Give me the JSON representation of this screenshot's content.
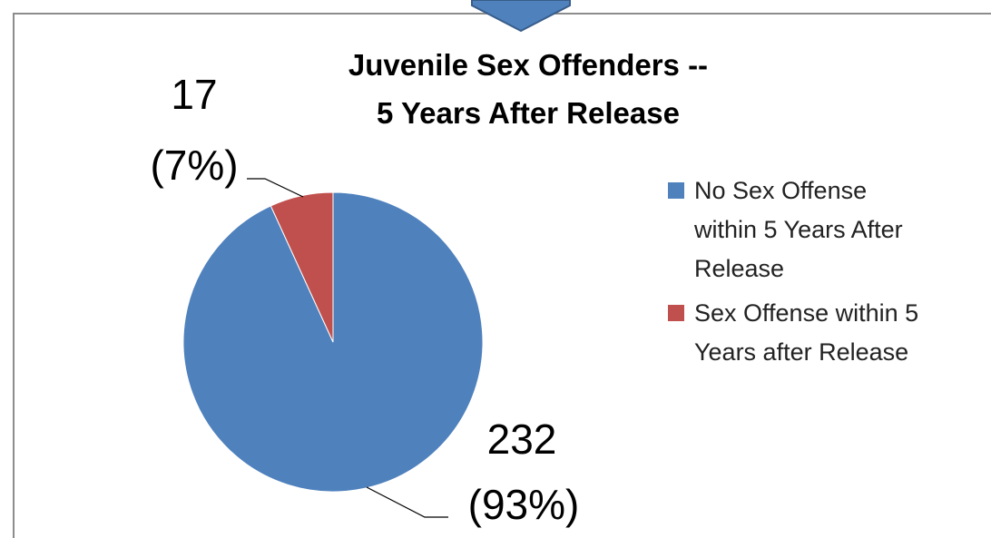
{
  "chart_data": {
    "type": "pie",
    "title": "Juvenile Sex Offenders --",
    "subtitle": "5 Years After Release",
    "categories": [
      "No Sex Offense within 5 Years After Release",
      "Sex Offense within 5 Years after Release"
    ],
    "values": [
      232,
      17
    ],
    "percent_labels": [
      "(93%)",
      "(7%)"
    ],
    "value_labels": [
      "232",
      "17"
    ],
    "legend_lines": [
      [
        "No Sex Offense",
        "within 5 Years After",
        "Release"
      ],
      [
        "Sex Offense within 5",
        "Years after Release"
      ]
    ],
    "colors": [
      "#4f81bd",
      "#c0504d"
    ],
    "legend_position": "right"
  },
  "decor": {
    "arrow_color": "#4f81bd"
  }
}
